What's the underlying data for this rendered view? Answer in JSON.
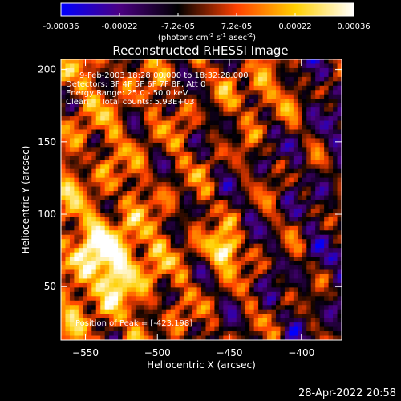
{
  "chart_data": {
    "type": "heatmap",
    "title": "Reconstructed RHESSI Image",
    "xlabel": "Heliocentric X (arcsec)",
    "ylabel": "Heliocentric Y (arcsec)",
    "xlim": [
      -567,
      -372
    ],
    "ylim": [
      13,
      207
    ],
    "xticks": [
      -550,
      -500,
      -450,
      -400
    ],
    "yticks": [
      50,
      100,
      150,
      200
    ],
    "colorbar": {
      "range": [
        -0.00036,
        0.00036
      ],
      "ticks": [
        "-0.00036",
        "-0.00022",
        "-7.2e-05",
        "7.2e-05",
        "0.00022",
        "0.00036"
      ],
      "label_main": "(photons cm",
      "label_exp1": "-2",
      "label_mid1": " s",
      "label_exp2": "-1",
      "label_mid2": " asec",
      "label_exp3": "-2",
      "label_end": ")"
    },
    "annotations": [
      "9-Feb-2003 18:28:00.000 to 18:32:28.000",
      "Detectors: 3F 4F 5F 6F 7F 8F, Att 0",
      "Energy Range: 25.0 - 50.0 keV",
      "Clean     Total counts: 5.93E+03"
    ],
    "peak_label": "Position of Peak = [-423,198]",
    "peak": [
      -423,
      198
    ],
    "colormap": [
      "#0000ff",
      "#4b0082",
      "#000000",
      "#ff4000",
      "#ffd000",
      "#ffffff"
    ],
    "grid": false
  },
  "footer": {
    "timestamp": "28-Apr-2022 20:58"
  }
}
